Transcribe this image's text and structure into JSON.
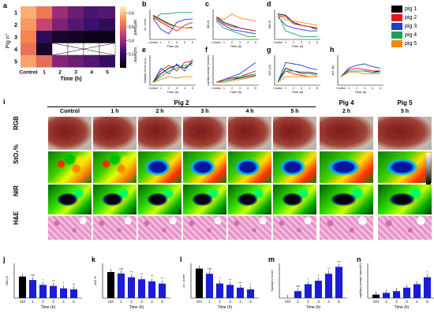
{
  "letters": {
    "a": "a",
    "b": "b",
    "c": "c",
    "d": "d",
    "e": "e",
    "f": "f",
    "g": "g",
    "h": "h",
    "i": "i",
    "j": "j",
    "k": "k",
    "l": "l",
    "m": "m",
    "n": "n"
  },
  "heatmap": {
    "ylabel": "Pig n°",
    "xlabel": "Time (h)",
    "rows": [
      "1",
      "2",
      "3",
      "4",
      "5"
    ],
    "cols": [
      "Control",
      "1",
      "2",
      "3",
      "4",
      "5"
    ],
    "colorbar_ticks": [
      "0.8",
      "0.6",
      "0.4",
      "0.2"
    ],
    "colorbar_top": "perfused",
    "colorbar_bottom": "ischemic"
  },
  "legend": [
    "pig 1",
    "pig 2",
    "pig 3",
    "pig 4",
    "pig 5"
  ],
  "colors": {
    "pig1": "#000000",
    "pig2": "#e8141e",
    "pig3": "#1f3fd6",
    "pig4": "#20a05a",
    "pig5": "#f08a10",
    "bar": "#1c1cd6",
    "barCtrl": "#000000"
  },
  "line_panels": [
    {
      "ylabel": "A.I. score",
      "x": [
        "Control",
        "1",
        "2",
        "3",
        "4",
        "5"
      ]
    },
    {
      "ylabel": "StO₂%",
      "x": [
        "Control",
        "1",
        "2",
        "3",
        "4",
        "5"
      ]
    },
    {
      "ylabel": "NIR %",
      "x": [
        "Control",
        "1",
        "2",
        "3",
        "4",
        "5"
      ]
    },
    {
      "ylabel": "Sudaly's Score (a.u.)",
      "x": [
        "Control",
        "1",
        "2",
        "3",
        "4",
        "5"
      ]
    },
    {
      "ylabel": "capillary lactate (mmol/L)",
      "x": [
        "Control",
        "1",
        "2",
        "3",
        "4",
        "5"
      ]
    },
    {
      "ylabel": "AST (UI)",
      "x": [
        "Control",
        "1",
        "2",
        "3",
        "4",
        "5"
      ]
    },
    {
      "ylabel": "ALT (UI)",
      "x": [
        "Control",
        "1",
        "2",
        "3",
        "4",
        "5"
      ]
    }
  ],
  "xlabel_time": "Time (h)",
  "panel_i": {
    "group_pig2": "Pig 2",
    "group_pig4": "Pig 4",
    "group_pig5": "Pig 5",
    "cols": [
      "Control",
      "1 h",
      "2 h",
      "3 h",
      "4 h",
      "5 h"
    ],
    "col_pig4": "2 h",
    "col_pig5": "5 h",
    "rows": [
      "RGB",
      "StO₂%",
      "NIR",
      "H&E"
    ]
  },
  "chart_data": [
    {
      "type": "heatmap",
      "rows": [
        "1",
        "2",
        "3",
        "4",
        "5"
      ],
      "cols": [
        "Control",
        "1",
        "2",
        "3",
        "4",
        "5"
      ],
      "values": [
        [
          0.85,
          0.72,
          0.45,
          0.35,
          0.28,
          0.3
        ],
        [
          0.8,
          0.55,
          0.38,
          0.3,
          0.25,
          0.2
        ],
        [
          0.75,
          0.2,
          0.1,
          0.08,
          0.05,
          0.05
        ],
        [
          0.7,
          0.1,
          null,
          null,
          null,
          null
        ],
        [
          0.82,
          0.68,
          0.4,
          0.35,
          0.3,
          0.22
        ]
      ]
    },
    {
      "type": "bar",
      "title": "",
      "ylabel": "StO₂%",
      "xlabel": "Time (h)",
      "categories": [
        "Ctrl",
        "1",
        "2",
        "3",
        "4",
        "5"
      ],
      "values": [
        62,
        52,
        38,
        35,
        28,
        25
      ],
      "annotations": [
        "",
        "ns",
        "*",
        "**",
        "*",
        "**"
      ],
      "ylim": [
        0,
        100
      ]
    },
    {
      "type": "bar",
      "title": "",
      "ylabel": "NIR %",
      "xlabel": "Time (h)",
      "categories": [
        "Ctrl",
        "1",
        "2",
        "3",
        "4",
        "5"
      ],
      "values": [
        90,
        85,
        72,
        65,
        58,
        50
      ],
      "annotations": [
        "",
        "ns",
        "**",
        "**",
        "**",
        "**"
      ],
      "ylim": [
        0,
        120
      ]
    },
    {
      "type": "bar",
      "title": "",
      "ylabel": "A.I. score",
      "xlabel": "Time (h)",
      "categories": [
        "Ctrl",
        "1",
        "2",
        "3",
        "4",
        "5"
      ],
      "values": [
        0.85,
        0.7,
        0.42,
        0.38,
        0.3,
        0.25
      ],
      "annotations": [
        "",
        "ns",
        "*",
        "**",
        "***",
        "*"
      ],
      "ylim": [
        0,
        1
      ]
    },
    {
      "type": "bar",
      "title": "",
      "ylabel": "Suzuky's Score",
      "xlabel": "Time (h)",
      "categories": [
        "Ctrl",
        "1",
        "2",
        "3",
        "4",
        "5"
      ],
      "values": [
        0,
        2,
        4,
        5,
        7,
        9
      ],
      "annotations": [
        "",
        "ns",
        "*",
        "*",
        "**",
        "***"
      ],
      "ylim": [
        0,
        10
      ]
    },
    {
      "type": "bar",
      "title": "",
      "ylabel": "capillary lactate (mmol/L)",
      "xlabel": "Time (h)",
      "categories": [
        "Ctrl",
        "1",
        "2",
        "3",
        "4",
        "5"
      ],
      "values": [
        1,
        1.5,
        2,
        3,
        4,
        6
      ],
      "annotations": [
        "",
        "",
        "",
        "",
        "",
        "*"
      ],
      "ylim": [
        0,
        10
      ]
    }
  ]
}
